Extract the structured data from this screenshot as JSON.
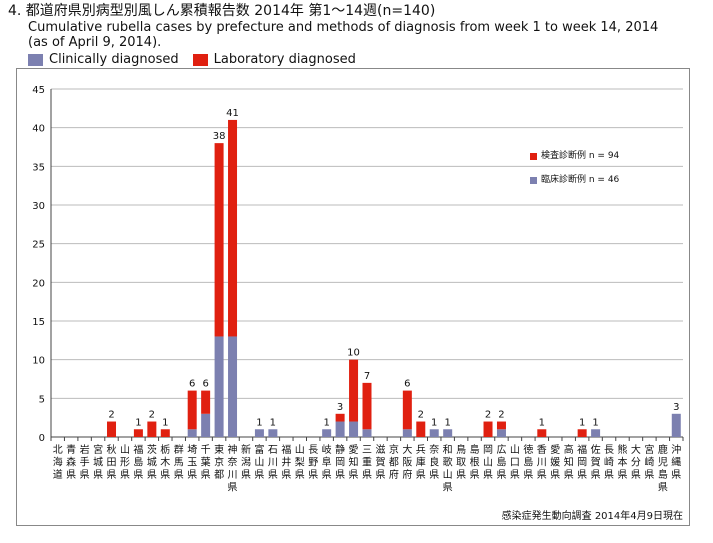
{
  "header": {
    "title_jp": "4. 都道府県別病型別風しん累積報告数 2014年 第1〜14週(n=140)",
    "title_en_line1": "Cumulative rubella cases by prefecture and methods of diagnosis from week 1 to week 14, 2014",
    "title_en_line2": "(as of  April 9, 2014)."
  },
  "legend_top": {
    "clinical": "Clinically diagnosed",
    "lab": "Laboratory diagnosed"
  },
  "legend_inset": {
    "lab": "検査診断例 n = 94",
    "clinical": "臨床診断例 n = 46"
  },
  "source": "感染症発生動向調査 2014年4月9日現在",
  "colors": {
    "clinical": "#7c80b0",
    "lab": "#e02010",
    "grid": "#bbbbbb"
  },
  "chart_data": {
    "type": "bar",
    "stacked": true,
    "ylim": [
      0,
      45
    ],
    "yticks": [
      0,
      5,
      10,
      15,
      20,
      25,
      30,
      35,
      40,
      45
    ],
    "grid": true,
    "legend_placement": "right",
    "categories": [
      "北海道",
      "青森県",
      "岩手県",
      "宮城県",
      "秋田県",
      "山形県",
      "福島県",
      "茨城県",
      "栃木県",
      "群馬県",
      "埼玉県",
      "千葉県",
      "東京都",
      "神奈川県",
      "新潟県",
      "富山県",
      "石川県",
      "福井県",
      "山梨県",
      "長野県",
      "岐阜県",
      "静岡県",
      "愛知県",
      "三重県",
      "滋賀県",
      "京都府",
      "大阪府",
      "兵庫県",
      "奈良県",
      "和歌山県",
      "鳥取県",
      "島根県",
      "岡山県",
      "広島県",
      "山口県",
      "徳島県",
      "香川県",
      "愛媛県",
      "高知県",
      "福岡県",
      "佐賀県",
      "長崎県",
      "熊本県",
      "大分県",
      "宮崎県",
      "鹿児島県",
      "沖縄県"
    ],
    "series": [
      {
        "name": "Clinically diagnosed",
        "values": [
          0,
          0,
          0,
          0,
          0,
          0,
          0,
          0,
          0,
          0,
          1,
          3,
          13,
          13,
          0,
          1,
          1,
          0,
          0,
          0,
          1,
          2,
          2,
          1,
          0,
          0,
          1,
          0,
          1,
          1,
          0,
          0,
          0,
          1,
          0,
          0,
          0,
          0,
          0,
          0,
          1,
          0,
          0,
          0,
          0,
          0,
          3
        ]
      },
      {
        "name": "Laboratory diagnosed",
        "values": [
          0,
          0,
          0,
          0,
          2,
          0,
          1,
          2,
          1,
          0,
          5,
          3,
          25,
          28,
          0,
          0,
          0,
          0,
          0,
          0,
          0,
          1,
          8,
          6,
          0,
          0,
          5,
          2,
          0,
          0,
          0,
          0,
          2,
          1,
          0,
          0,
          1,
          0,
          0,
          1,
          0,
          0,
          0,
          0,
          0,
          0,
          0
        ]
      }
    ],
    "totals": [
      0,
      0,
      0,
      0,
      2,
      0,
      1,
      2,
      1,
      0,
      6,
      6,
      38,
      41,
      0,
      1,
      1,
      0,
      0,
      0,
      1,
      3,
      10,
      7,
      0,
      0,
      6,
      2,
      1,
      1,
      0,
      0,
      2,
      2,
      0,
      0,
      1,
      0,
      0,
      1,
      1,
      0,
      0,
      0,
      0,
      0,
      3
    ]
  }
}
